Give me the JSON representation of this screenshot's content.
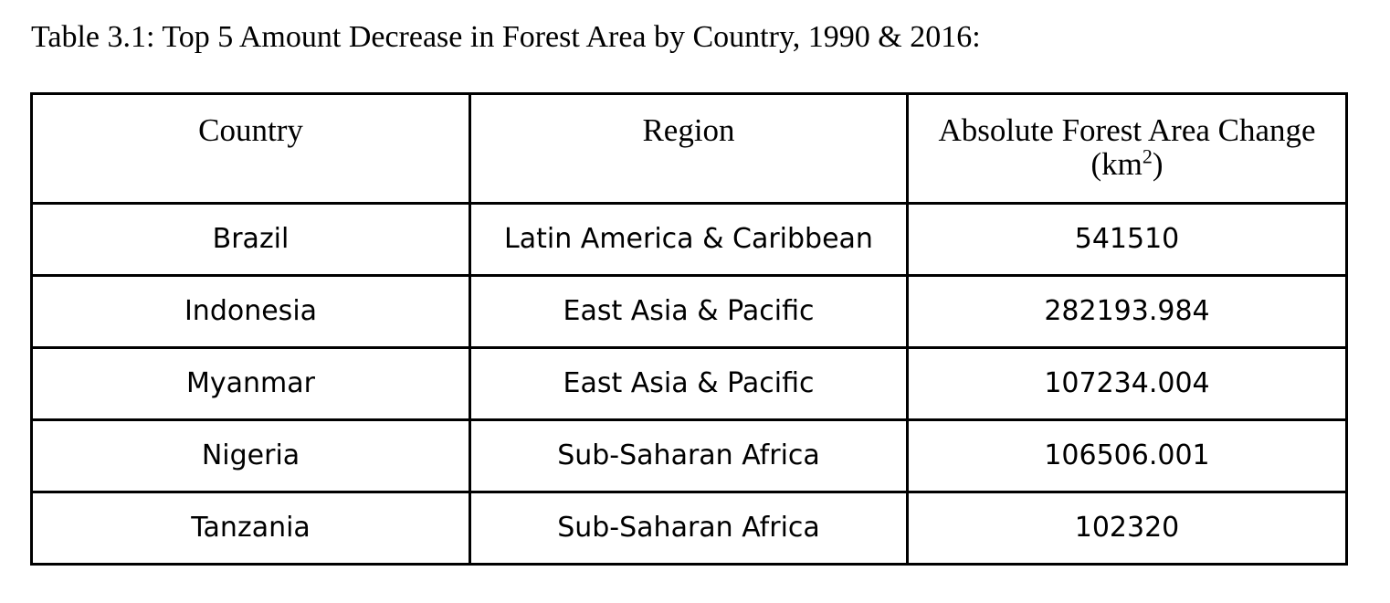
{
  "caption": "Table 3.1: Top 5 Amount Decrease in Forest Area by Country, 1990 & 2016:",
  "table": {
    "headers": {
      "country": "Country",
      "region": "Region",
      "change_line1": "Absolute Forest Area Change",
      "change_unit_open": "(km",
      "change_unit_sup": "2",
      "change_unit_close": ")"
    },
    "rows": [
      {
        "country": "Brazil",
        "region": "Latin America & Caribbean",
        "change": "541510"
      },
      {
        "country": "Indonesia",
        "region": "East Asia & Pacific",
        "change": "282193.984"
      },
      {
        "country": "Myanmar",
        "region": "East Asia & Pacific",
        "change": "107234.004"
      },
      {
        "country": "Nigeria",
        "region": "Sub-Saharan Africa",
        "change": "106506.001"
      },
      {
        "country": "Tanzania",
        "region": "Sub-Saharan Africa",
        "change": "102320"
      }
    ]
  }
}
